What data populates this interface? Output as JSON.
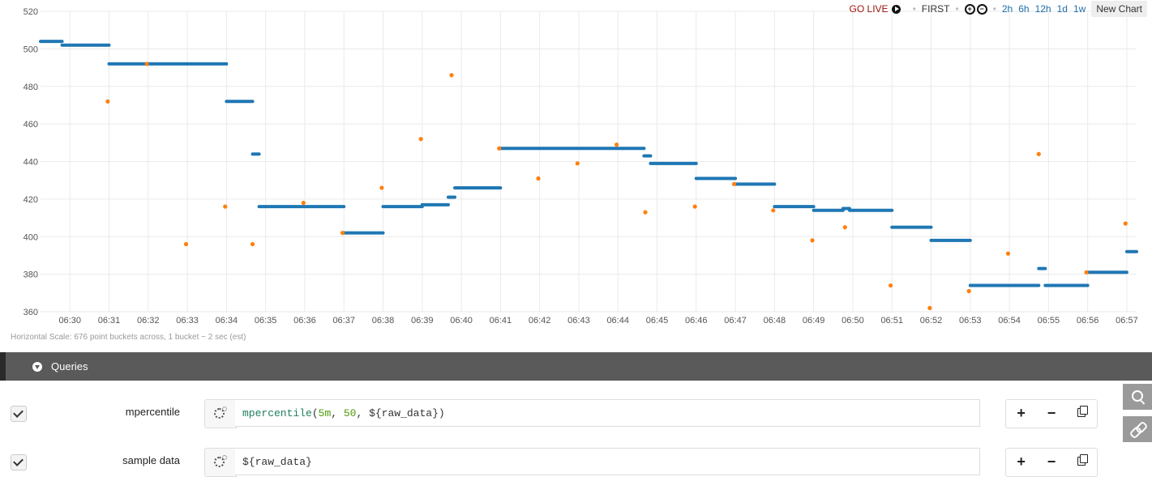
{
  "toolbar": {
    "go_live": "GO LIVE",
    "first": "FIRST",
    "zoom_in": "+",
    "zoom_out": "−",
    "ranges": [
      "2h",
      "6h",
      "12h",
      "1d",
      "1w"
    ],
    "new_chart": "New Chart"
  },
  "chart_data": {
    "type": "scatter",
    "title": "",
    "ylim": [
      360,
      520
    ],
    "y_ticks": [
      360,
      380,
      400,
      420,
      440,
      460,
      480,
      500,
      520
    ],
    "x_ticks": [
      "06:30",
      "06:31",
      "06:32",
      "06:33",
      "06:34",
      "06:35",
      "06:36",
      "06:37",
      "06:38",
      "06:39",
      "06:40",
      "06:41",
      "06:42",
      "06:43",
      "06:44",
      "06:45",
      "06:46",
      "06:47",
      "06:48",
      "06:49",
      "06:50",
      "06:51",
      "06:52",
      "06:53",
      "06:54",
      "06:55",
      "06:56",
      "06:57"
    ],
    "x_range": [
      "06:29:15",
      "06:57:15"
    ],
    "grid": true,
    "colors": {
      "mpercentile": "#1f77b4",
      "sample data": "#ff7f0e"
    },
    "series": [
      {
        "name": "mpercentile",
        "segments": [
          [
            "06:29:15",
            "06:29:48",
            504
          ],
          [
            "06:29:48",
            "06:31:00",
            502
          ],
          [
            "06:31:00",
            "06:33:00",
            492
          ],
          [
            "06:33:00",
            "06:34:00",
            492
          ],
          [
            "06:34:00",
            "06:34:40",
            472
          ],
          [
            "06:34:40",
            "06:34:50",
            444
          ],
          [
            "06:34:50",
            "06:37:00",
            416
          ],
          [
            "06:37:00",
            "06:38:00",
            402
          ],
          [
            "06:38:00",
            "06:39:00",
            416
          ],
          [
            "06:39:00",
            "06:39:40",
            417
          ],
          [
            "06:39:40",
            "06:39:50",
            421
          ],
          [
            "06:39:50",
            "06:41:00",
            426
          ],
          [
            "06:41:00",
            "06:44:40",
            447
          ],
          [
            "06:44:40",
            "06:44:50",
            443
          ],
          [
            "06:44:50",
            "06:46:00",
            439
          ],
          [
            "06:46:00",
            "06:47:00",
            431
          ],
          [
            "06:47:00",
            "06:48:00",
            428
          ],
          [
            "06:48:00",
            "06:49:00",
            416
          ],
          [
            "06:49:00",
            "06:49:45",
            414
          ],
          [
            "06:49:45",
            "06:49:55",
            415
          ],
          [
            "06:49:55",
            "06:51:00",
            414
          ],
          [
            "06:51:00",
            "06:52:00",
            405
          ],
          [
            "06:52:00",
            "06:53:00",
            398
          ],
          [
            "06:53:00",
            "06:54:45",
            374
          ],
          [
            "06:54:45",
            "06:54:55",
            383
          ],
          [
            "06:54:55",
            "06:56:00",
            374
          ],
          [
            "06:56:00",
            "06:57:00",
            381
          ],
          [
            "06:57:00",
            "06:57:15",
            392
          ]
        ]
      },
      {
        "name": "sample data",
        "points": [
          [
            "06:30:58",
            472
          ],
          [
            "06:31:58",
            492
          ],
          [
            "06:32:58",
            396
          ],
          [
            "06:33:58",
            416
          ],
          [
            "06:34:40",
            396
          ],
          [
            "06:35:58",
            418
          ],
          [
            "06:36:58",
            402
          ],
          [
            "06:37:58",
            426
          ],
          [
            "06:38:58",
            452
          ],
          [
            "06:39:45",
            486
          ],
          [
            "06:40:58",
            447
          ],
          [
            "06:41:58",
            431
          ],
          [
            "06:42:58",
            439
          ],
          [
            "06:43:58",
            449
          ],
          [
            "06:44:42",
            413
          ],
          [
            "06:45:58",
            416
          ],
          [
            "06:46:58",
            428
          ],
          [
            "06:47:58",
            414
          ],
          [
            "06:48:58",
            398
          ],
          [
            "06:49:48",
            405
          ],
          [
            "06:50:58",
            374
          ],
          [
            "06:51:58",
            362
          ],
          [
            "06:52:58",
            371
          ],
          [
            "06:53:58",
            391
          ],
          [
            "06:54:45",
            444
          ],
          [
            "06:55:58",
            381
          ],
          [
            "06:56:58",
            407
          ]
        ]
      }
    ]
  },
  "scale_note": "Horizontal Scale: 676 point buckets across, 1 bucket ~ 2 sec (est)",
  "queries": {
    "title": "Queries",
    "rows": [
      {
        "name": "mpercentile",
        "fn": "mpercentile",
        "open": "(",
        "arg1": "5m",
        "sep1": ", ",
        "arg2": "50",
        "sep2": ", ",
        "arg3": "${raw_data}",
        "close": ")"
      },
      {
        "name": "sample data",
        "text": "${raw_data}"
      }
    ],
    "add": "+",
    "remove": "−"
  }
}
